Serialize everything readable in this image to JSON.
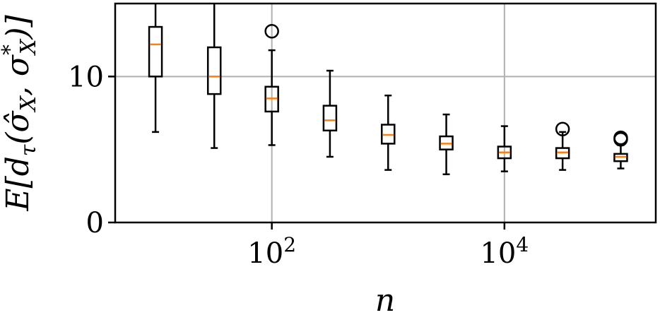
{
  "chart_data": {
    "type": "box",
    "xlabel": "n",
    "ylabel": "E[d_τ(σ̂_X, σ*_X)]",
    "x_scale": "log",
    "xlim": [
      4.5,
      200000
    ],
    "ylim": [
      0,
      15
    ],
    "x_ticks": [
      {
        "value": 100,
        "base": "10",
        "exp": "2"
      },
      {
        "value": 10000,
        "base": "10",
        "exp": "4"
      }
    ],
    "y_ticks": [
      {
        "value": 0,
        "label": "0"
      },
      {
        "value": 10,
        "label": "10"
      }
    ],
    "grid": true,
    "colors": {
      "box": "#000000",
      "median": "#ff7f0e",
      "grid": "#b0b0b0"
    },
    "boxes": [
      {
        "n": 10,
        "whisker_low": 6.2,
        "q1": 10.0,
        "median": 12.2,
        "q3": 13.4,
        "whisker_high": 15.0,
        "outliers": []
      },
      {
        "n": 32,
        "whisker_low": 5.1,
        "q1": 8.8,
        "median": 10.0,
        "q3": 12.0,
        "whisker_high": 15.0,
        "outliers": []
      },
      {
        "n": 100,
        "whisker_low": 5.3,
        "q1": 7.6,
        "median": 8.5,
        "q3": 9.3,
        "whisker_high": 11.8,
        "outliers": [
          13.1
        ]
      },
      {
        "n": 316,
        "whisker_low": 4.5,
        "q1": 6.3,
        "median": 7.0,
        "q3": 8.0,
        "whisker_high": 10.4,
        "outliers": []
      },
      {
        "n": 1000,
        "whisker_low": 3.6,
        "q1": 5.4,
        "median": 6.0,
        "q3": 6.7,
        "whisker_high": 8.7,
        "outliers": []
      },
      {
        "n": 3162,
        "whisker_low": 3.3,
        "q1": 5.0,
        "median": 5.4,
        "q3": 5.9,
        "whisker_high": 7.4,
        "outliers": []
      },
      {
        "n": 10000,
        "whisker_low": 3.5,
        "q1": 4.4,
        "median": 4.8,
        "q3": 5.2,
        "whisker_high": 6.6,
        "outliers": []
      },
      {
        "n": 31623,
        "whisker_low": 3.6,
        "q1": 4.4,
        "median": 4.8,
        "q3": 5.1,
        "whisker_high": 6.2,
        "outliers": [
          6.4
        ]
      },
      {
        "n": 100000,
        "whisker_low": 3.7,
        "q1": 4.2,
        "median": 4.5,
        "q3": 4.7,
        "whisker_high": 5.3,
        "outliers": [
          5.7,
          5.8
        ]
      }
    ]
  }
}
